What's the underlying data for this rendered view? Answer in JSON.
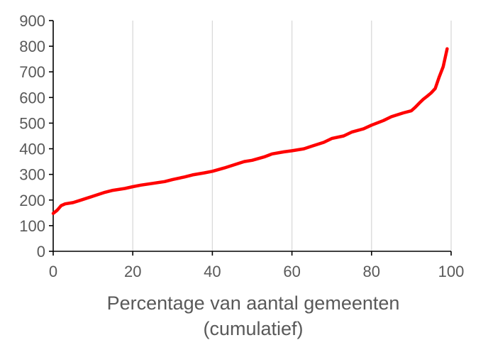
{
  "chart_data": {
    "type": "line",
    "title": "",
    "xlabel_line1": "Percentage van aantal gemeenten",
    "xlabel_line2": "(cumulatief)",
    "ylabel": "",
    "xlim": [
      0,
      100
    ],
    "ylim": [
      0,
      900
    ],
    "x_ticks": [
      0,
      20,
      40,
      60,
      80,
      100
    ],
    "y_ticks": [
      0,
      100,
      200,
      300,
      400,
      500,
      600,
      700,
      800,
      900
    ],
    "grid": "vertical",
    "legend": "none",
    "line_color": "#ff0000",
    "grid_color": "#d9d9d9",
    "axis_color": "#000000",
    "series": [
      {
        "x": [
          0,
          1,
          2,
          3,
          5,
          7,
          10,
          13,
          15,
          18,
          20,
          22,
          25,
          28,
          30,
          33,
          35,
          38,
          40,
          43,
          45,
          48,
          50,
          53,
          55,
          58,
          60,
          63,
          65,
          68,
          70,
          73,
          75,
          78,
          80,
          83,
          85,
          88,
          90,
          91,
          92,
          93,
          94,
          95,
          96,
          97,
          98,
          99
        ],
        "y": [
          148,
          160,
          178,
          185,
          190,
          200,
          215,
          230,
          238,
          245,
          252,
          258,
          265,
          272,
          280,
          290,
          298,
          306,
          312,
          325,
          335,
          350,
          355,
          368,
          380,
          388,
          392,
          400,
          410,
          425,
          440,
          450,
          465,
          478,
          492,
          510,
          525,
          540,
          548,
          562,
          578,
          593,
          605,
          618,
          635,
          680,
          720,
          790
        ]
      }
    ]
  }
}
